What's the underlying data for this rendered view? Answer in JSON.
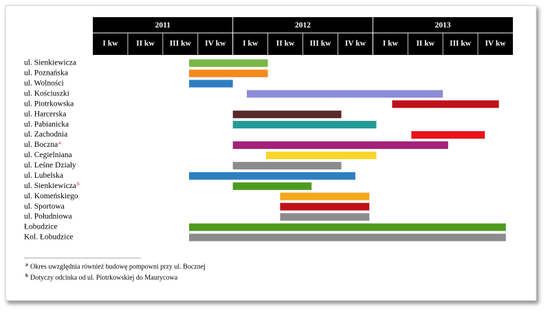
{
  "chart_data": {
    "type": "gantt",
    "years": [
      "2011",
      "2012",
      "2013"
    ],
    "quarters": [
      "I kw",
      "II kw",
      "III kw",
      "IV kw",
      "I kw",
      "II kw",
      "III kw",
      "IV kw",
      "I kw",
      "II kw",
      "III kw",
      "IV kw"
    ],
    "xlim": [
      0,
      12
    ],
    "categories": [
      "ul. Sienkiewicza",
      "ul. Poznańska",
      "ul. Wolności",
      "ul. Kościuszki",
      "ul. Piotrkowska",
      "ul. Harcerska",
      "ul. Pabianicka",
      "ul. Zachodnia",
      "ul. Boczna",
      "ul. Cegielniana",
      "ul. Leśne Działy",
      "ul. Lubelska",
      "ul. Sienkiewicza",
      "ul. Komeńskiego",
      "ul. Sportowa",
      "ul. Południowa",
      "Łobudzice",
      "Kol. Łobudzice"
    ],
    "markers": [
      null,
      null,
      null,
      null,
      null,
      null,
      null,
      null,
      "a",
      null,
      null,
      null,
      "b",
      null,
      null,
      null,
      null,
      null
    ],
    "start": [
      2.75,
      2.75,
      2.75,
      4.4,
      8.55,
      4,
      4,
      9.1,
      4,
      4.95,
      4,
      2.75,
      4,
      5.35,
      5.35,
      5.35,
      2.75,
      2.75
    ],
    "end": [
      5,
      5,
      4,
      10,
      11.6,
      7.1,
      8.1,
      11.2,
      10.15,
      8.1,
      7.1,
      7.5,
      6.25,
      7.9,
      7.9,
      7.9,
      11.8,
      11.8
    ],
    "colors": [
      "#7ab648",
      "#f28a1c",
      "#2e7fc1",
      "#8c8cd8",
      "#c0111a",
      "#5a2a2a",
      "#239a96",
      "#e8141a",
      "#a3237a",
      "#f7d52a",
      "#8c8c8c",
      "#2e7fc1",
      "#4e9a1e",
      "#f5a81c",
      "#c0111a",
      "#8c8c8c",
      "#4e9a1e",
      "#8c8c8c"
    ],
    "footnotes": [
      {
        "marker": "a",
        "text": "Okres uwzględnia również budowę pompowni przy ul. Bocznej"
      },
      {
        "marker": "b",
        "text": "Dotyczy odcinka od ul. Piotrkowskiej do Maurycowa"
      }
    ]
  }
}
